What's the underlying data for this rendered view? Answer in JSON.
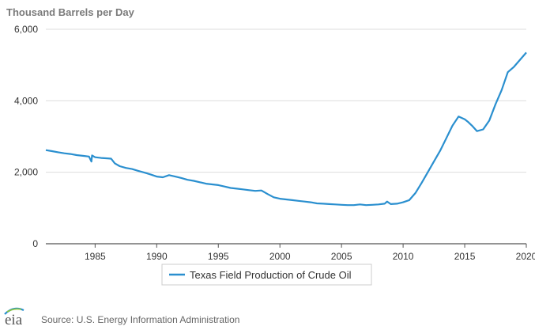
{
  "chart_data": {
    "type": "line",
    "ylabel": "Thousand Barrels per Day",
    "xlabel": "",
    "ylim": [
      0,
      6000
    ],
    "xlim": [
      1981,
      2020
    ],
    "y_ticks": [
      0,
      2000,
      4000,
      6000
    ],
    "y_tick_labels": [
      "0",
      "2,000",
      "4,000",
      "6,000"
    ],
    "x_ticks": [
      1985,
      1990,
      1995,
      2000,
      2005,
      2010,
      2015,
      2020
    ],
    "x_tick_labels": [
      "1985",
      "1990",
      "1995",
      "2000",
      "2005",
      "2010",
      "2015",
      "2020"
    ],
    "grid": "horizontal",
    "legend_position": "bottom",
    "series": [
      {
        "name": "Texas Field Production of Crude Oil",
        "color": "#2a8fcf",
        "x": [
          1981.0,
          1981.5,
          1982.0,
          1982.5,
          1983.0,
          1983.5,
          1984.0,
          1984.5,
          1984.7,
          1984.75,
          1985.0,
          1985.5,
          1986.0,
          1986.3,
          1986.6,
          1987.0,
          1987.5,
          1988.0,
          1988.5,
          1989.0,
          1989.5,
          1990.0,
          1990.5,
          1991.0,
          1991.5,
          1992.0,
          1992.5,
          1993.0,
          1993.5,
          1994.0,
          1994.5,
          1995.0,
          1995.5,
          1996.0,
          1996.5,
          1997.0,
          1997.5,
          1998.0,
          1998.5,
          1999.0,
          1999.5,
          2000.0,
          2000.5,
          2001.0,
          2001.5,
          2002.0,
          2002.5,
          2003.0,
          2003.5,
          2004.0,
          2004.5,
          2005.0,
          2005.5,
          2006.0,
          2006.5,
          2007.0,
          2007.5,
          2008.0,
          2008.5,
          2008.7,
          2009.0,
          2009.5,
          2010.0,
          2010.5,
          2011.0,
          2011.5,
          2012.0,
          2012.5,
          2013.0,
          2013.5,
          2014.0,
          2014.5,
          2015.0,
          2015.3,
          2015.6,
          2016.0,
          2016.5,
          2017.0,
          2017.5,
          2018.0,
          2018.5,
          2019.0,
          2019.5,
          2020.0
        ],
        "values": [
          2620,
          2590,
          2560,
          2530,
          2510,
          2480,
          2460,
          2440,
          2300,
          2470,
          2420,
          2400,
          2390,
          2380,
          2250,
          2170,
          2120,
          2090,
          2040,
          1990,
          1940,
          1880,
          1860,
          1920,
          1880,
          1840,
          1790,
          1760,
          1720,
          1680,
          1660,
          1640,
          1600,
          1560,
          1540,
          1520,
          1500,
          1480,
          1490,
          1390,
          1300,
          1260,
          1240,
          1220,
          1200,
          1180,
          1160,
          1130,
          1120,
          1110,
          1100,
          1090,
          1080,
          1080,
          1100,
          1080,
          1090,
          1100,
          1120,
          1180,
          1110,
          1120,
          1160,
          1220,
          1420,
          1700,
          2000,
          2300,
          2600,
          2950,
          3300,
          3560,
          3480,
          3400,
          3300,
          3150,
          3200,
          3450,
          3900,
          4300,
          4800,
          4950,
          5150,
          5350
        ]
      }
    ]
  },
  "legend": {
    "label": "Texas Field Production of Crude Oil"
  },
  "source": {
    "text": "Source: U.S. Energy Information Administration",
    "logo_text": "eia"
  }
}
